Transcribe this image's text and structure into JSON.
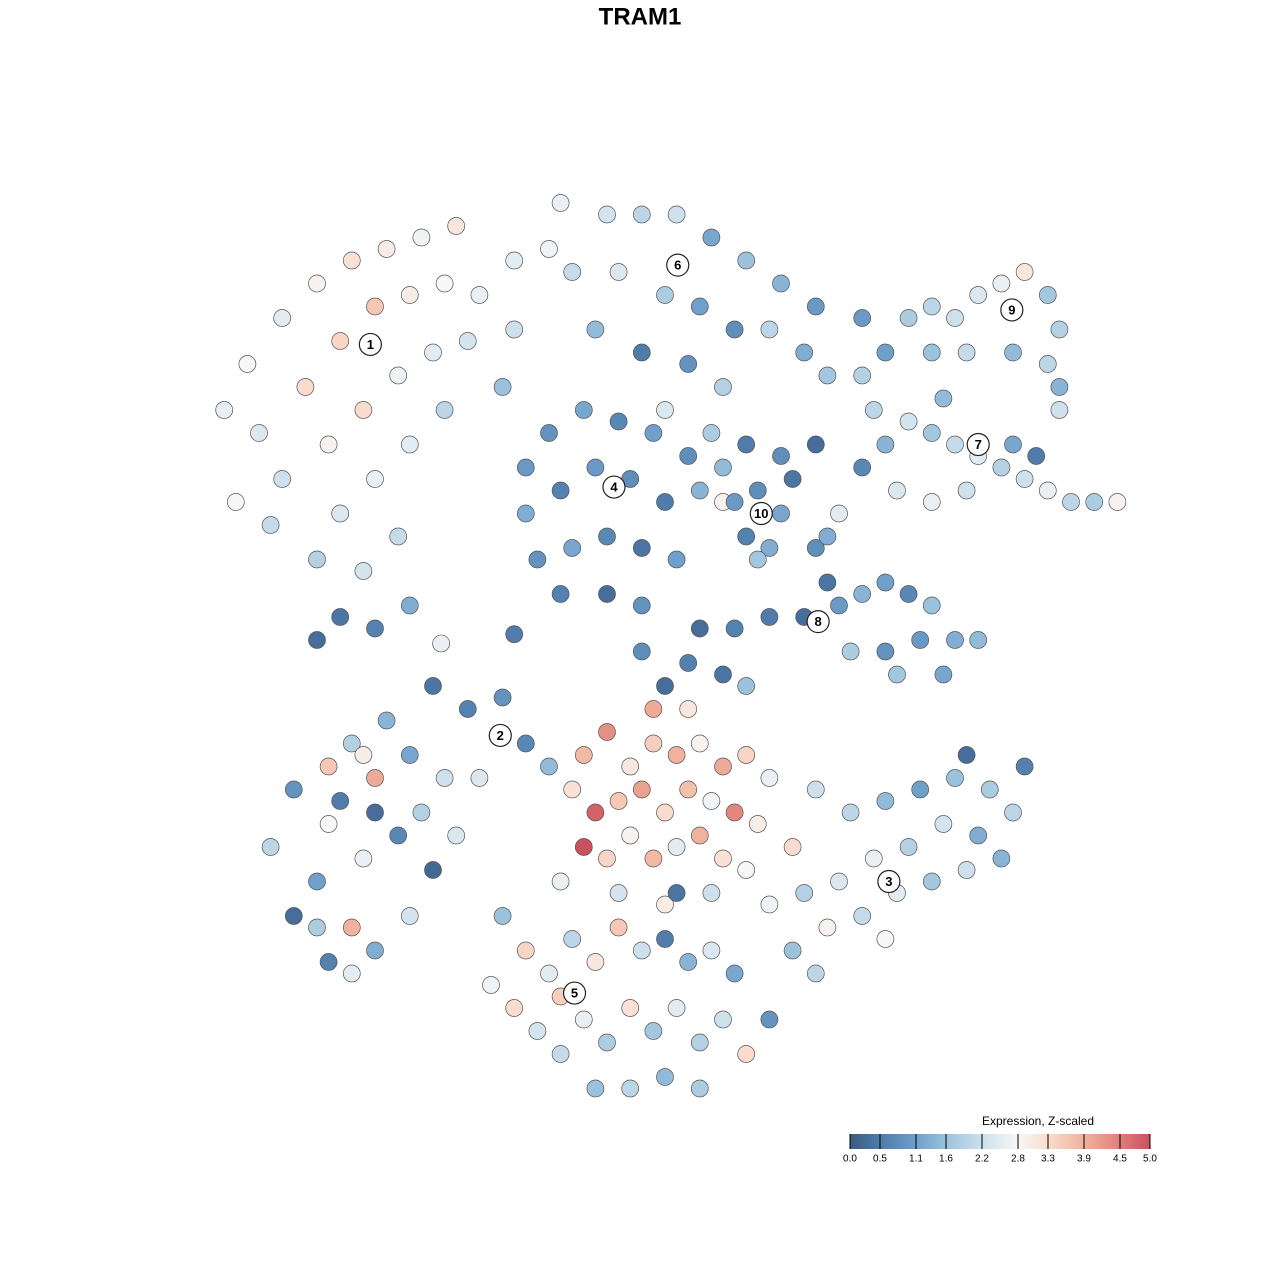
{
  "chart_data": {
    "type": "scatter",
    "title": "TRAM1",
    "xlim": [
      -40,
      40
    ],
    "ylim": [
      -40,
      40
    ],
    "x": [
      -38,
      -36,
      -33,
      -30,
      -27,
      -24,
      -21,
      -18,
      -35,
      -31,
      -28,
      -25,
      -22,
      -19,
      -16,
      -33,
      -29,
      -26,
      -23,
      -20,
      -17,
      -28,
      -25,
      -22,
      -19,
      -30,
      -26,
      -23,
      -28,
      -25,
      -22,
      -30,
      -13,
      -13,
      -14,
      -37,
      -34,
      -9,
      -5,
      -2,
      1,
      4,
      7,
      10,
      13,
      -8,
      -4,
      0,
      3,
      6,
      9,
      12,
      -6,
      2,
      -2,
      14,
      5,
      0,
      -10,
      -12,
      -10,
      -7,
      -4,
      -1,
      2,
      -12,
      -9,
      -6,
      -3,
      0,
      3,
      -11,
      -8,
      -5,
      -2,
      1,
      -9,
      -5,
      -2,
      5,
      7,
      10,
      13,
      5,
      4,
      6,
      8,
      10,
      7,
      9,
      11,
      8,
      19,
      21,
      23,
      25,
      27,
      29,
      31,
      33,
      34,
      33,
      30,
      26,
      23,
      17,
      34,
      34,
      17,
      18,
      19,
      21,
      23,
      25,
      27,
      29,
      31,
      33,
      35,
      37,
      39,
      30,
      24,
      20,
      23,
      26,
      32,
      17,
      13,
      14,
      15,
      12,
      9,
      6,
      3,
      17,
      19,
      21,
      23,
      25,
      22,
      19,
      20,
      24,
      27,
      16,
      14,
      15,
      5,
      2,
      0,
      -2,
      7,
      -20,
      -17,
      -14,
      -24,
      -27,
      -29,
      -25,
      -22,
      -19,
      -28,
      -25,
      -23,
      -29,
      -21,
      -18,
      -20,
      -12,
      -10,
      -32,
      -34,
      -30,
      -26,
      -16,
      -26,
      -32,
      -30,
      -27,
      -25,
      -29,
      -22,
      -27,
      -7,
      -5,
      -3,
      -1,
      1,
      3,
      5,
      7,
      9,
      -8,
      -6,
      -4,
      -2,
      0,
      2,
      4,
      6,
      8,
      -7,
      -5,
      -3,
      -1,
      1,
      3,
      5,
      7,
      -9,
      -4,
      0,
      4,
      9,
      11,
      -1,
      2,
      13,
      16,
      19,
      22,
      25,
      28,
      30,
      27,
      24,
      21,
      18,
      15,
      12,
      14,
      17,
      20,
      23,
      26,
      29,
      19,
      11,
      13,
      31,
      26,
      -14,
      -12,
      -15,
      -13,
      -10,
      -8,
      -6,
      -4,
      -2,
      0,
      2,
      4,
      6,
      -11,
      -9,
      -7,
      -5,
      -3,
      -1,
      1,
      3,
      5,
      7,
      9,
      -6,
      -3,
      0,
      3,
      -9,
      1,
      -19.3,
      -13
    ],
    "y": [
      20,
      24,
      28,
      31,
      33,
      34,
      35,
      36,
      18,
      22,
      26,
      29,
      30,
      31,
      30,
      14,
      17,
      20,
      23,
      25,
      26,
      11,
      14,
      17,
      20,
      7,
      6,
      9,
      2,
      1,
      3,
      0,
      33,
      27,
      22,
      12,
      10,
      38,
      37,
      37,
      37,
      35,
      33,
      31,
      29,
      32,
      32,
      30,
      29,
      27,
      27,
      25,
      27,
      24,
      25,
      23,
      22,
      20,
      34,
      15,
      18,
      20,
      19,
      18,
      16,
      11,
      13,
      15,
      14,
      12,
      13,
      7,
      8,
      9,
      8,
      7,
      4,
      4,
      3,
      15,
      17,
      16,
      17,
      12,
      18,
      12,
      13,
      11,
      9,
      8,
      14,
      7,
      25,
      28,
      29,
      28,
      30,
      31,
      32,
      30,
      27,
      24,
      25,
      25,
      25,
      28,
      22,
      20,
      23,
      20,
      17,
      19,
      18,
      17,
      16,
      15,
      14,
      13,
      12,
      12,
      12,
      17,
      21,
      13,
      12,
      13,
      16,
      15,
      8,
      5,
      3,
      2,
      2,
      1,
      1,
      4,
      5,
      4,
      3,
      0,
      0,
      -1,
      -3,
      -3,
      0,
      -1,
      9,
      11,
      -3,
      -2,
      -4,
      -1,
      -4,
      -4,
      -6,
      -5,
      -7,
      -9,
      -11,
      -12,
      -10,
      -12,
      -14,
      -15,
      -17,
      -16,
      -15,
      -17,
      -20,
      -9,
      -11,
      -13,
      -18,
      -21,
      -19,
      -12,
      -10,
      -24,
      -25,
      -25,
      -27,
      -28,
      -24,
      -29,
      -10,
      -8,
      -11,
      -9,
      -10,
      -9,
      -11,
      -10,
      -12,
      -13,
      -15,
      -14,
      -13,
      -15,
      -13,
      -14,
      -15,
      -16,
      -18,
      -19,
      -17,
      -19,
      -18,
      -17,
      -19,
      -20,
      -21,
      -22,
      -23,
      -22,
      -23,
      -18,
      -6,
      -6,
      -13,
      -15,
      -14,
      -13,
      -12,
      -13,
      -15,
      -17,
      -16,
      -18,
      -19,
      -21,
      -22,
      -25,
      -24,
      -22,
      -21,
      -20,
      -19,
      -26,
      -27,
      -29,
      -11,
      -10,
      -24,
      -27,
      -30,
      -32,
      -29,
      -26,
      -28,
      -25,
      -27,
      -26,
      -28,
      -27,
      -29,
      -34,
      -36,
      -33,
      -35,
      -32,
      -34,
      -32,
      -35,
      -33,
      -36,
      -33,
      -39,
      -39,
      -38,
      -39,
      -31,
      -22,
      -0.3,
      0.5
    ],
    "values": [
      2.6,
      2.8,
      2.5,
      2.9,
      3.2,
      3.0,
      2.7,
      3.1,
      2.4,
      3.3,
      3.4,
      3.6,
      3.0,
      2.8,
      2.6,
      2.2,
      2.9,
      3.3,
      2.7,
      2.5,
      2.3,
      2.4,
      2.6,
      2.5,
      2.0,
      1.9,
      2.3,
      2.1,
      0.4,
      0.6,
      1.3,
      0.3,
      2.5,
      2.2,
      1.6,
      2.8,
      2.1,
      2.6,
      2.3,
      2.0,
      2.2,
      1.2,
      1.6,
      1.4,
      1.0,
      2.1,
      2.4,
      1.8,
      1.1,
      0.8,
      2.0,
      1.3,
      1.5,
      0.9,
      0.5,
      1.7,
      1.9,
      2.4,
      2.7,
      1.0,
      0.9,
      1.2,
      0.7,
      1.1,
      0.8,
      1.3,
      0.6,
      1.0,
      0.8,
      0.5,
      1.4,
      0.9,
      1.2,
      0.7,
      0.4,
      1.1,
      0.6,
      0.3,
      0.9,
      1.5,
      0.5,
      0.8,
      0.3,
      2.9,
      1.8,
      1.0,
      0.8,
      1.2,
      0.6,
      1.3,
      0.4,
      1.7,
      1.1,
      1.8,
      2.0,
      2.2,
      2.4,
      2.6,
      3.1,
      1.7,
      1.9,
      2.0,
      1.5,
      2.1,
      1.6,
      1.0,
      1.4,
      2.2,
      1.9,
      2.0,
      1.4,
      2.3,
      1.7,
      2.1,
      2.5,
      1.9,
      2.2,
      2.6,
      2.0,
      1.8,
      2.9,
      1.2,
      1.5,
      2.4,
      2.6,
      2.2,
      0.5,
      0.7,
      0.8,
      0.4,
      1.0,
      0.3,
      0.5,
      0.6,
      0.3,
      1.4,
      1.1,
      0.7,
      1.6,
      1.3,
      1.0,
      0.9,
      1.7,
      1.2,
      1.5,
      1.8,
      1.3,
      2.5,
      0.4,
      0.6,
      0.3,
      0.8,
      1.6,
      0.4,
      0.6,
      0.9,
      1.4,
      1.9,
      3.6,
      4.0,
      1.2,
      2.2,
      0.5,
      0.3,
      0.7,
      2.8,
      1.9,
      2.4,
      0.2,
      0.7,
      1.5,
      0.9,
      2.0,
      1.1,
      2.6,
      2.4,
      3.0,
      0.3,
      1.8,
      3.9,
      1.3,
      0.6,
      2.3,
      2.5,
      3.8,
      4.3,
      3.1,
      3.5,
      3.9,
      2.9,
      4.0,
      3.4,
      2.6,
      3.2,
      4.8,
      3.6,
      4.1,
      3.3,
      3.7,
      2.7,
      4.4,
      3.0,
      5.0,
      3.4,
      2.9,
      3.8,
      2.5,
      3.9,
      3.2,
      2.8,
      2.6,
      2.3,
      3.0,
      2.2,
      2.7,
      3.3,
      4.0,
      3.1,
      2.2,
      2.0,
      1.5,
      1.1,
      1.6,
      1.8,
      2.0,
      1.3,
      2.3,
      1.9,
      2.6,
      2.4,
      1.9,
      2.9,
      2.1,
      2.5,
      1.7,
      2.2,
      1.4,
      2.8,
      1.6,
      2.0,
      0.6,
      0.3,
      1.6,
      3.4,
      2.7,
      3.3,
      2.5,
      2.0,
      3.1,
      3.6,
      2.2,
      0.5,
      1.4,
      2.4,
      1.2,
      2.3,
      2.1,
      2.6,
      1.8,
      3.2,
      1.7,
      2.5,
      1.9,
      2.2,
      3.3,
      0.9,
      1.6,
      2.0,
      1.5,
      1.8,
      3.5,
      0.4,
      2.6,
      0.5
    ],
    "clusters": {
      "labels": [
        "1",
        "2",
        "3",
        "4",
        "5",
        "6",
        "7",
        "8",
        "9",
        "10"
      ],
      "x": [
        -25.4,
        -14.2,
        19.3,
        -4.4,
        -7.8,
        1.1,
        27.0,
        13.2,
        29.9,
        8.3
      ],
      "y": [
        25.7,
        -8.3,
        -21.0,
        13.3,
        -30.7,
        32.6,
        17.0,
        1.6,
        28.7,
        11.0
      ]
    },
    "colorbar": {
      "title": "Expression, Z-scaled",
      "ticks": [
        {
          "value": 0,
          "label": "0.0"
        },
        0.5,
        1.1,
        1.6,
        2.2,
        2.8,
        3.3,
        3.9,
        4.5,
        {
          "value": 5,
          "label": "5.0"
        }
      ],
      "colors": [
        "#3b5a80",
        "#4f7cab",
        "#6f9fcb",
        "#9bc2dc",
        "#cde0ec",
        "#f7f7f7",
        "#f9dccd",
        "#f0b29c",
        "#df7f79",
        "#c9505f"
      ]
    }
  }
}
